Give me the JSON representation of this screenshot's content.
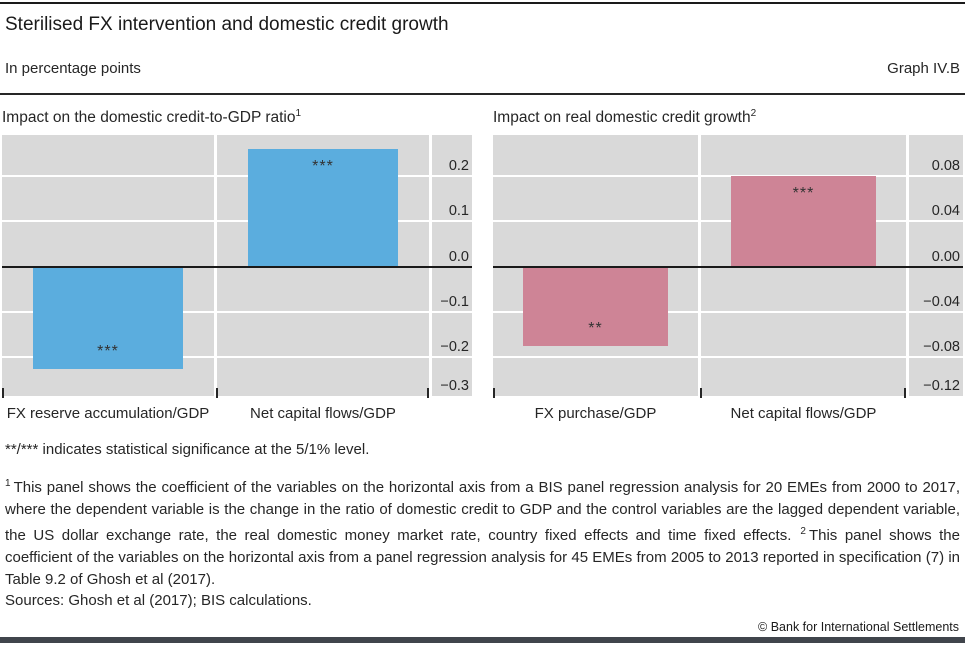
{
  "header": {
    "title": "Sterilised FX intervention and domestic credit growth",
    "subtitle": "In percentage points",
    "graph_label": "Graph IV.B"
  },
  "colors": {
    "plot_background": "#d9d9d9",
    "blue_bar": "#5badde",
    "pink_bar": "#ce8496",
    "zero_line": "#1a1a1a",
    "footer_bar": "#40454c"
  },
  "chart_data": [
    {
      "type": "bar",
      "title": "Impact on the domestic credit-to-GDP ratio",
      "title_sup": "1",
      "bar_color": "#5badde",
      "categories": [
        "FX reserve accumulation/GDP",
        "Net capital flows/GDP"
      ],
      "values": [
        -0.225,
        0.26
      ],
      "significance": [
        "***",
        "***"
      ],
      "yticks": [
        0.2,
        0.1,
        0.0,
        -0.1,
        -0.2,
        -0.3
      ],
      "ytick_labels": [
        "0.2",
        "0.1",
        "0.0",
        "−0.1",
        "−0.2",
        "−0.3"
      ],
      "ylim": [
        -0.285,
        0.29
      ],
      "grid": true,
      "tick_label_side": "right"
    },
    {
      "type": "bar",
      "title": "Impact on real domestic credit growth",
      "title_sup": "2",
      "bar_color": "#ce8496",
      "categories": [
        "FX purchase/GDP",
        "Net capital flows/GDP"
      ],
      "values": [
        -0.07,
        0.08
      ],
      "significance": [
        "**",
        "***"
      ],
      "yticks": [
        0.08,
        0.04,
        0.0,
        -0.04,
        -0.08,
        -0.12
      ],
      "ytick_labels": [
        "0.08",
        "0.04",
        "0.00",
        "−0.04",
        "−0.08",
        "−0.12"
      ],
      "ylim": [
        -0.114,
        0.116
      ],
      "grid": true,
      "tick_label_side": "right"
    }
  ],
  "notes": {
    "significance_note": "**/*** indicates statistical significance at the 5/1% level.",
    "footnote1_sup": "1",
    "footnote1": "This panel shows the coefficient of the variables on the horizontal axis from a BIS panel regression analysis for 20 EMEs from 2000 to 2017, where the dependent variable is the change in the ratio of domestic credit to GDP and the control variables are the lagged dependent variable, the US dollar exchange rate, the real domestic money market rate, country fixed effects and time fixed effects.",
    "footnote2_sup": "2",
    "footnote2": "This panel shows the coefficient of the variables on the horizontal axis from a panel regression analysis for 45 EMEs from 2005 to 2013 reported in specification (7) in Table 9.2 of Ghosh et al (2017).",
    "sources": "Sources: Ghosh et al (2017); BIS calculations.",
    "copyright": "© Bank for International Settlements"
  }
}
